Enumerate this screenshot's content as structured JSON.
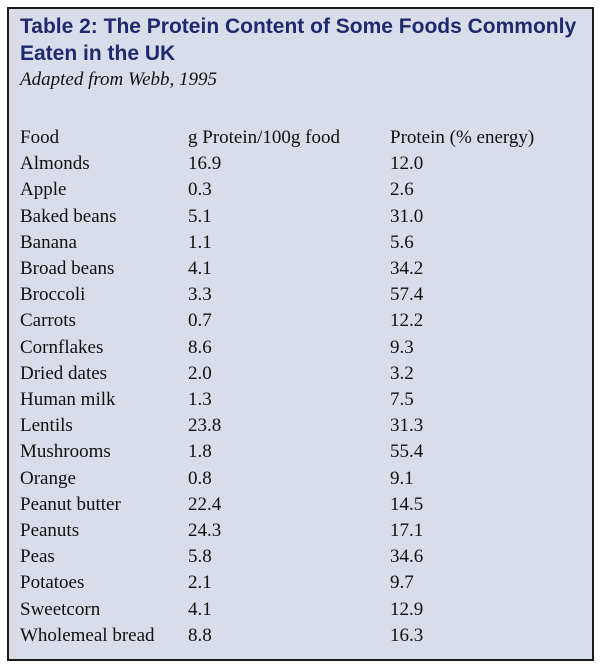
{
  "table": {
    "title": "Table 2: The Protein Content of Some Foods Commonly Eaten in the UK",
    "source": "Adapted from Webb, 1995",
    "columns": [
      "Food",
      "g Protein/100g food",
      "Protein (% energy)"
    ],
    "rows": [
      [
        "Almonds",
        "16.9",
        "12.0"
      ],
      [
        "Apple",
        "0.3",
        "2.6"
      ],
      [
        "Baked beans",
        "5.1",
        "31.0"
      ],
      [
        "Banana",
        "1.1",
        "5.6"
      ],
      [
        "Broad beans",
        "4.1",
        "34.2"
      ],
      [
        "Broccoli",
        "3.3",
        "57.4"
      ],
      [
        "Carrots",
        "0.7",
        "12.2"
      ],
      [
        "Cornflakes",
        "8.6",
        "9.3"
      ],
      [
        "Dried dates",
        "2.0",
        "3.2"
      ],
      [
        "Human milk",
        "1.3",
        "7.5"
      ],
      [
        "Lentils",
        "23.8",
        "31.3"
      ],
      [
        "Mushrooms",
        "1.8",
        "55.4"
      ],
      [
        "Orange",
        "0.8",
        "9.1"
      ],
      [
        "Peanut butter",
        "22.4",
        "14.5"
      ],
      [
        "Peanuts",
        "24.3",
        "17.1"
      ],
      [
        "Peas",
        "5.8",
        "34.6"
      ],
      [
        "Potatoes",
        "2.1",
        "9.7"
      ],
      [
        "Sweetcorn",
        "4.1",
        "12.9"
      ],
      [
        "Wholemeal bread",
        "8.8",
        "16.3"
      ]
    ]
  },
  "colors": {
    "panel_background": "#d9dce9",
    "title_color": "#1f2a6e",
    "border_color": "#1a1a1a"
  }
}
